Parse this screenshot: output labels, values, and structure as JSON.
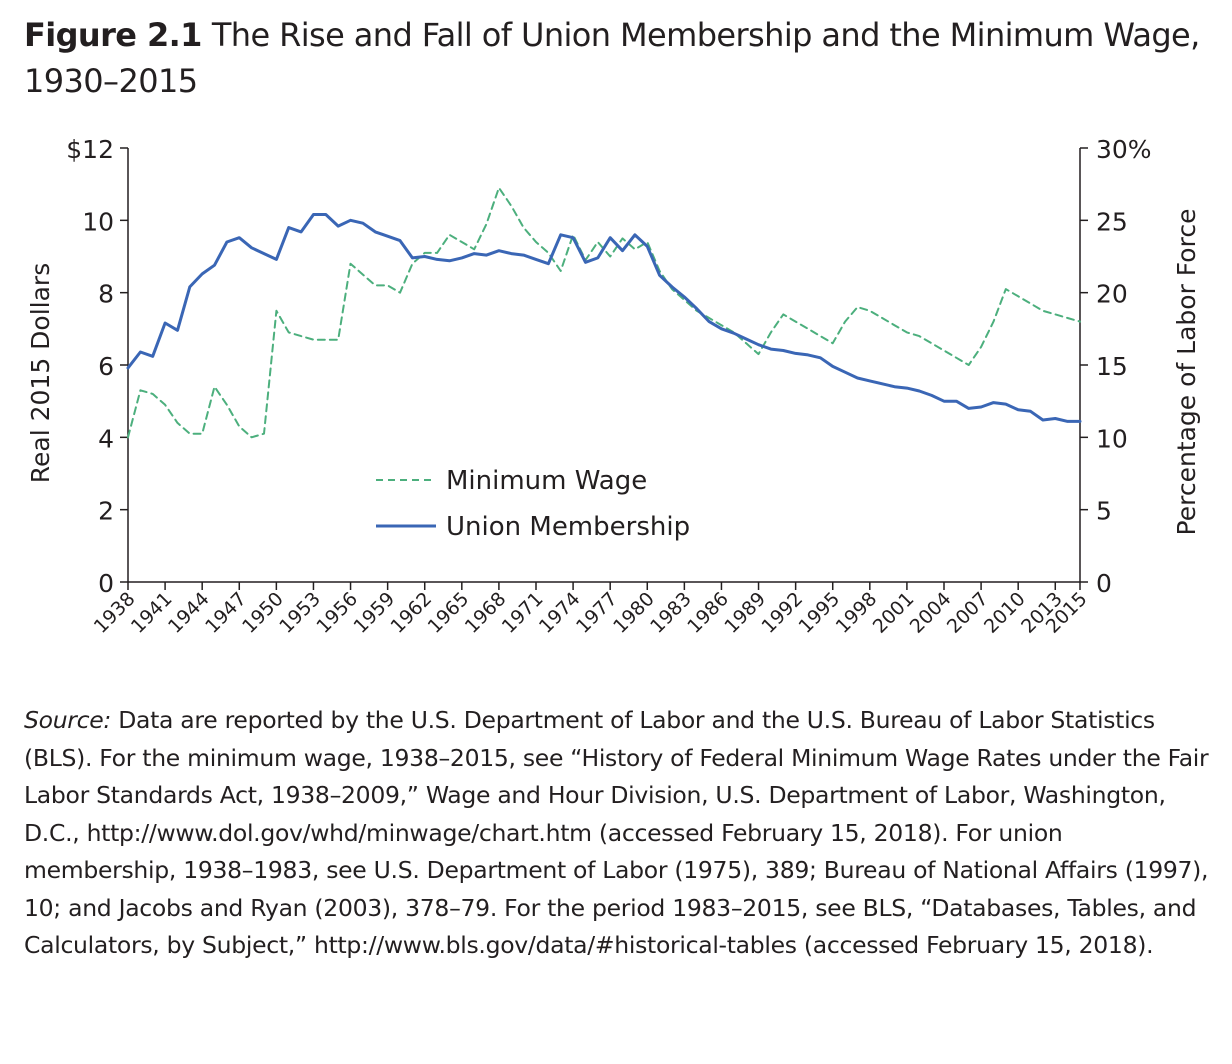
{
  "figure": {
    "label": "Figure 2.1",
    "title": "The Rise and Fall of Union Membership and the Minimum Wage, 1930–2015"
  },
  "chart_data": {
    "type": "line",
    "x": [
      1938,
      1939,
      1940,
      1941,
      1942,
      1943,
      1944,
      1945,
      1946,
      1947,
      1948,
      1949,
      1950,
      1951,
      1952,
      1953,
      1954,
      1955,
      1956,
      1957,
      1958,
      1959,
      1960,
      1961,
      1962,
      1963,
      1964,
      1965,
      1966,
      1967,
      1968,
      1969,
      1970,
      1971,
      1972,
      1973,
      1974,
      1975,
      1976,
      1977,
      1978,
      1979,
      1980,
      1981,
      1982,
      1983,
      1984,
      1985,
      1986,
      1987,
      1988,
      1989,
      1990,
      1991,
      1992,
      1993,
      1994,
      1995,
      1996,
      1997,
      1998,
      1999,
      2000,
      2001,
      2002,
      2003,
      2004,
      2005,
      2006,
      2007,
      2008,
      2009,
      2010,
      2011,
      2012,
      2013,
      2014,
      2015
    ],
    "x_ticks": [
      "1938",
      "1941",
      "1944",
      "1947",
      "1950",
      "1953",
      "1956",
      "1959",
      "1962",
      "1965",
      "1968",
      "1971",
      "1974",
      "1977",
      "1980",
      "1983",
      "1986",
      "1989",
      "1992",
      "1995",
      "1998",
      "2001",
      "2004",
      "2007",
      "2010",
      "2013",
      "2015"
    ],
    "series": [
      {
        "name": "Minimum Wage",
        "axis": "left",
        "style": "dashed",
        "color": "#4caf7d",
        "values": [
          4.0,
          5.3,
          5.2,
          4.9,
          4.4,
          4.1,
          4.1,
          5.4,
          4.9,
          4.3,
          4.0,
          4.1,
          7.5,
          6.9,
          6.8,
          6.7,
          6.7,
          6.7,
          8.8,
          8.5,
          8.2,
          8.2,
          8.0,
          8.8,
          9.1,
          9.1,
          9.6,
          9.4,
          9.2,
          9.9,
          10.9,
          10.4,
          9.8,
          9.4,
          9.1,
          8.6,
          9.6,
          8.9,
          9.4,
          9.0,
          9.5,
          9.2,
          9.4,
          8.6,
          8.1,
          7.8,
          7.5,
          7.3,
          7.1,
          6.9,
          6.6,
          6.3,
          6.9,
          7.4,
          7.2,
          7.0,
          6.8,
          6.6,
          7.2,
          7.6,
          7.5,
          7.3,
          7.1,
          6.9,
          6.8,
          6.6,
          6.4,
          6.2,
          6.0,
          6.5,
          7.2,
          8.1,
          7.9,
          7.7,
          7.5,
          7.4,
          7.3,
          7.2
        ]
      },
      {
        "name": "Union Membership",
        "axis": "right",
        "style": "solid",
        "color": "#3a66b5",
        "values": [
          14.8,
          15.9,
          15.6,
          17.9,
          17.4,
          20.4,
          21.3,
          21.9,
          23.5,
          23.8,
          23.1,
          22.7,
          22.3,
          24.5,
          24.2,
          25.4,
          25.4,
          24.6,
          25.0,
          24.8,
          24.2,
          23.9,
          23.6,
          22.4,
          22.5,
          22.3,
          22.2,
          22.4,
          22.7,
          22.6,
          22.9,
          22.7,
          22.6,
          22.3,
          22.0,
          24.0,
          23.8,
          22.1,
          22.4,
          23.8,
          22.9,
          24.0,
          23.2,
          21.2,
          20.4,
          19.7,
          18.9,
          18.0,
          17.5,
          17.2,
          16.8,
          16.4,
          16.1,
          16.0,
          15.8,
          15.7,
          15.5,
          14.9,
          14.5,
          14.1,
          13.9,
          13.7,
          13.5,
          13.4,
          13.2,
          12.9,
          12.5,
          12.5,
          12.0,
          12.1,
          12.4,
          12.3,
          11.9,
          11.8,
          11.2,
          11.3,
          11.1,
          11.1
        ]
      }
    ],
    "y_left": {
      "label": "Real 2015 Dollars",
      "range": [
        0,
        12
      ],
      "ticks": [
        "0",
        "2",
        "4",
        "6",
        "8",
        "10",
        "$12"
      ]
    },
    "y_right": {
      "label": "Percentage of Labor Force",
      "range": [
        0,
        30
      ],
      "ticks": [
        "0",
        "5",
        "10",
        "15",
        "20",
        "25",
        "30%"
      ]
    },
    "grid": false,
    "legend_position": "inside-left"
  },
  "source": {
    "label": "Source:",
    "text": "Data are reported by the U.S. Department of Labor and the U.S. Bureau of Labor Statistics (BLS). For the minimum wage, 1938–2015, see “History of Federal Minimum Wage Rates under the Fair Labor Standards Act, 1938–2009,” Wage and Hour Division, U.S. Department of Labor, Washington, D.C., http://www.dol.gov/whd/minwage/chart.htm (accessed February 15, 2018). For union membership, 1938–1983, see U.S. Department of Labor (1975), 389; Bureau of National Affairs (1997), 10; and Jacobs and Ryan (2003), 378–79. For the period 1983–2015, see BLS, “Databases, Tables, and Calculators, by Subject,” http://www.bls.gov/data/#historical-tables (accessed February 15, 2018)."
  }
}
